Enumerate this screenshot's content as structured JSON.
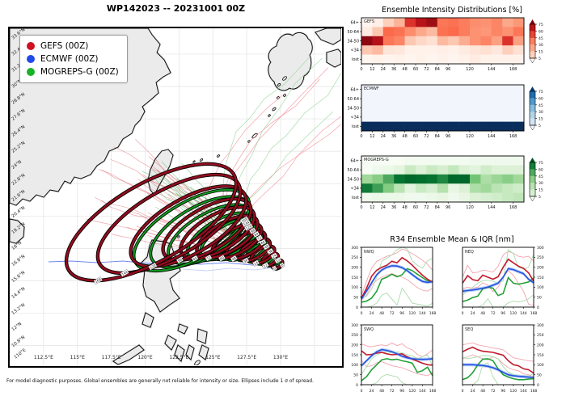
{
  "header": {
    "title": "WP142023 -- 20231001 00Z"
  },
  "map": {
    "legend": [
      {
        "label": "GEFS (00Z)",
        "color": "#cf1022"
      },
      {
        "label": "ECMWF (00Z)",
        "color": "#1f49e8"
      },
      {
        "label": "MOGREPS-G (00Z)",
        "color": "#17b326"
      }
    ],
    "x_ticks": [
      "112.5°E",
      "115°E",
      "117.5°E",
      "120°E",
      "122.5°E",
      "125°E",
      "127.5°E",
      "130°E"
    ],
    "corner_label": "110°E",
    "y_ticks": [
      "33.6°N",
      "32.4°N",
      "31.2°N",
      "30°N",
      "28.8°N",
      "27.6°N",
      "26.4°N",
      "25.2°N",
      "24°N",
      "22.8°N",
      "21.6°N",
      "20.4°N",
      "19.2°N",
      "18°N",
      "16.8°N",
      "15.6°N",
      "14.4°N",
      "13.2°N",
      "12°N",
      "10.8°N",
      "9.6°N"
    ]
  },
  "footnote": "For model diagnostic purposes. Global ensembles are generally not reliable for intensity or size. Ellipses include 1 σ of spread.",
  "chart_data": {
    "intensity_distributions": {
      "type": "heatmap",
      "title": "Ensemble Intensity Distributions [%]",
      "row_labels": [
        "64+",
        "50-64",
        "34-50",
        "<34",
        "lost"
      ],
      "x_ticks": [
        0,
        12,
        24,
        36,
        48,
        60,
        72,
        84,
        96,
        120,
        144,
        168
      ],
      "hours": [
        0,
        12,
        24,
        36,
        48,
        60,
        72,
        84,
        96,
        108,
        120,
        132,
        144,
        156,
        168
      ],
      "colorbar_ticks": [
        75,
        60,
        45,
        30,
        15,
        5
      ],
      "panels": [
        {
          "model": "GEFS",
          "colormap": "reds",
          "grid": [
            [
              0,
              2,
              10,
              18,
              55,
              68,
              78,
              40,
              42,
              38,
              32,
              30,
              35,
              22,
              28
            ],
            [
              3,
              12,
              45,
              42,
              32,
              22,
              15,
              42,
              45,
              38,
              30,
              28,
              35,
              30,
              40
            ],
            [
              85,
              70,
              40,
              35,
              12,
              8,
              6,
              15,
              12,
              20,
              30,
              35,
              25,
              55,
              25
            ],
            [
              12,
              15,
              5,
              4,
              1,
              1,
              1,
              2,
              1,
              3,
              5,
              6,
              4,
              10,
              6
            ],
            [
              0,
              1,
              0,
              1,
              0,
              1,
              0,
              1,
              0,
              1,
              3,
              1,
              1,
              1,
              1
            ]
          ]
        },
        {
          "model": "ECMWF",
          "colormap": "blues",
          "grid": [
            [
              0,
              0,
              0,
              0,
              0,
              0,
              0,
              0,
              0,
              0,
              0,
              0,
              0,
              0,
              0
            ],
            [
              0,
              0,
              0,
              0,
              0,
              0,
              0,
              0,
              0,
              0,
              0,
              0,
              0,
              0,
              0
            ],
            [
              0,
              0,
              0,
              0,
              0,
              0,
              0,
              0,
              0,
              0,
              0,
              0,
              0,
              0,
              0
            ],
            [
              0,
              0,
              0,
              0,
              0,
              0,
              0,
              0,
              0,
              0,
              0,
              0,
              0,
              0,
              0
            ],
            [
              100,
              100,
              100,
              100,
              100,
              100,
              100,
              100,
              100,
              100,
              100,
              100,
              100,
              100,
              100
            ]
          ]
        },
        {
          "model": "MOGREPS-G",
          "colormap": "greens",
          "grid": [
            [
              0,
              0,
              0,
              0,
              1,
              1,
              1,
              1,
              1,
              1,
              2,
              2,
              2,
              2,
              2
            ],
            [
              0,
              2,
              3,
              5,
              14,
              8,
              14,
              10,
              16,
              8,
              6,
              12,
              8,
              8,
              8
            ],
            [
              30,
              38,
              52,
              72,
              78,
              75,
              72,
              62,
              78,
              78,
              45,
              25,
              32,
              38,
              30
            ],
            [
              68,
              55,
              40,
              20,
              6,
              14,
              10,
              22,
              4,
              8,
              25,
              30,
              20,
              15,
              12
            ],
            [
              2,
              3,
              3,
              3,
              2,
              2,
              3,
              4,
              2,
              4,
              8,
              10,
              12,
              15,
              18
            ]
          ]
        }
      ]
    },
    "r34": {
      "type": "line",
      "title": "R34 Ensemble Mean & IQR [nm]",
      "x": [
        0,
        12,
        24,
        36,
        48,
        60,
        72,
        84,
        96,
        108,
        120,
        132,
        144,
        156,
        168
      ],
      "x_ticks": [
        0,
        24,
        48,
        72,
        96,
        120,
        144,
        168
      ],
      "ylim": [
        0,
        300
      ],
      "y_ticks": [
        0,
        50,
        100,
        150,
        200,
        250,
        300
      ],
      "colors": {
        "gefs": "#c21a2c",
        "gefs_band": "#f2a4ae",
        "ecmwf": "#2553e0",
        "ecmwf_band": "#9db8f7",
        "mogreps": "#22a137",
        "mogreps_band": "#a8dcaa"
      },
      "quadrants": [
        {
          "label": "NWQ",
          "y_axis_side": "left",
          "gefs_mean": [
            45,
            95,
            155,
            185,
            200,
            210,
            230,
            222,
            248,
            232,
            210,
            185,
            160,
            140,
            125
          ],
          "gefs_low": [
            35,
            60,
            110,
            135,
            150,
            160,
            168,
            158,
            150,
            138,
            118,
            98,
            85,
            80,
            95
          ],
          "gefs_high": [
            60,
            130,
            195,
            230,
            242,
            255,
            262,
            272,
            292,
            283,
            268,
            253,
            235,
            215,
            185
          ],
          "ecmwf_mean": [
            40,
            80,
            122,
            162,
            186,
            200,
            207,
            206,
            198,
            183,
            163,
            144,
            129,
            124,
            128
          ],
          "mogreps_mean": [
            25,
            30,
            45,
            80,
            140,
            150,
            165,
            152,
            162,
            193,
            183,
            165,
            148,
            132,
            128
          ],
          "mogreps_low": [
            0,
            0,
            5,
            20,
            60,
            70,
            40,
            10,
            95,
            60,
            20,
            15,
            10,
            5,
            20
          ],
          "mogreps_high": [
            40,
            55,
            90,
            150,
            230,
            245,
            262,
            288,
            300,
            292,
            232,
            210,
            195,
            232,
            245
          ]
        },
        {
          "label": "NEQ",
          "y_axis_side": "right",
          "gefs_mean": [
            120,
            158,
            138,
            132,
            160,
            150,
            140,
            152,
            200,
            240,
            222,
            205,
            195,
            172,
            130
          ],
          "gefs_low": [
            92,
            100,
            95,
            100,
            122,
            110,
            78,
            100,
            150,
            182,
            160,
            120,
            80,
            15,
            8
          ],
          "gefs_high": [
            150,
            210,
            172,
            175,
            185,
            182,
            175,
            205,
            262,
            280,
            270,
            255,
            250,
            255,
            230
          ],
          "ecmwf_mean": [
            80,
            83,
            86,
            90,
            95,
            100,
            110,
            120,
            150,
            193,
            188,
            178,
            168,
            140,
            122
          ],
          "mogreps_mean": [
            28,
            35,
            48,
            55,
            92,
            100,
            95,
            58,
            68,
            148,
            120,
            115,
            120,
            126,
            145
          ],
          "mogreps_low": [
            0,
            0,
            0,
            0,
            10,
            42,
            0,
            0,
            0,
            22,
            30,
            25,
            30,
            42,
            62
          ],
          "mogreps_high": [
            62,
            80,
            100,
            120,
            132,
            135,
            130,
            120,
            132,
            288,
            268,
            200,
            190,
            200,
            265
          ]
        },
        {
          "label": "SWQ",
          "y_axis_side": "left",
          "gefs_mean": [
            170,
            150,
            152,
            158,
            162,
            155,
            150,
            152,
            155,
            140,
            128,
            118,
            108,
            100,
            98
          ],
          "gefs_low": [
            122,
            90,
            95,
            110,
            115,
            105,
            95,
            90,
            85,
            75,
            65,
            55,
            50,
            45,
            60
          ],
          "gefs_high": [
            205,
            195,
            190,
            196,
            200,
            195,
            210,
            196,
            205,
            185,
            175,
            152,
            140,
            155,
            175
          ],
          "ecmwf_mean": [
            95,
            120,
            145,
            165,
            176,
            172,
            165,
            155,
            143,
            135,
            130,
            128,
            127,
            128,
            130
          ],
          "mogreps_mean": [
            20,
            40,
            75,
            100,
            125,
            130,
            125,
            128,
            120,
            115,
            108,
            62,
            70,
            88,
            45
          ],
          "mogreps_low": [
            0,
            0,
            0,
            10,
            40,
            52,
            45,
            40,
            10,
            0,
            0,
            0,
            0,
            0,
            0
          ],
          "mogreps_high": [
            52,
            90,
            130,
            150,
            160,
            165,
            160,
            165,
            160,
            150,
            145,
            130,
            140,
            150,
            92
          ]
        },
        {
          "label": "SEQ",
          "y_axis_side": "right",
          "gefs_mean": [
            165,
            178,
            188,
            175,
            168,
            165,
            162,
            155,
            148,
            120,
            100,
            95,
            80,
            75,
            58
          ],
          "gefs_low": [
            130,
            140,
            150,
            140,
            130,
            125,
            140,
            130,
            105,
            85,
            75,
            70,
            55,
            50,
            40
          ],
          "gefs_high": [
            200,
            205,
            210,
            200,
            195,
            190,
            185,
            180,
            175,
            155,
            135,
            130,
            125,
            120,
            118
          ],
          "ecmwf_mean": [
            100,
            100,
            100,
            98,
            96,
            92,
            85,
            75,
            62,
            50,
            45,
            42,
            40,
            38,
            35
          ],
          "mogreps_mean": [
            25,
            35,
            60,
            100,
            128,
            130,
            120,
            80,
            50,
            38,
            30,
            25,
            25,
            28,
            30
          ],
          "mogreps_low": [
            0,
            0,
            0,
            20,
            100,
            110,
            40,
            0,
            0,
            0,
            0,
            0,
            0,
            0,
            0
          ],
          "mogreps_high": [
            140,
            130,
            135,
            140,
            146,
            146,
            140,
            130,
            90,
            62,
            52,
            45,
            40,
            45,
            55
          ]
        }
      ]
    },
    "track_ellipses": {
      "note": "spread ellipses on map, [cx,cy,rx,ry] in map px, rotation -30deg",
      "hours": [
        0,
        12,
        24,
        36,
        48,
        60,
        72,
        84,
        96,
        120,
        144,
        168
      ],
      "gefs": [
        [
          331,
          292,
          7,
          4
        ],
        [
          322,
          286,
          11,
          6
        ],
        [
          313,
          280,
          16,
          8
        ],
        [
          303,
          274,
          21,
          10
        ],
        [
          292,
          268,
          27,
          12
        ],
        [
          281,
          263,
          34,
          15
        ],
        [
          269,
          258,
          42,
          18
        ],
        [
          257,
          253,
          51,
          22
        ],
        [
          244,
          249,
          61,
          26
        ],
        [
          221,
          245,
          80,
          34
        ],
        [
          197,
          242,
          99,
          41
        ],
        [
          175,
          240,
          118,
          48
        ]
      ],
      "mogreps": [
        [
          332,
          294,
          6,
          3
        ],
        [
          324,
          288,
          9,
          5
        ],
        [
          316,
          283,
          13,
          7
        ],
        [
          308,
          278,
          17,
          9
        ],
        [
          299,
          273,
          22,
          11
        ],
        [
          290,
          269,
          28,
          13
        ],
        [
          281,
          265,
          34,
          15
        ],
        [
          272,
          261,
          40,
          18
        ],
        [
          262,
          258,
          47,
          21
        ],
        [
          248,
          255,
          58,
          26
        ],
        [
          236,
          252,
          69,
          31
        ],
        [
          225,
          250,
          80,
          35
        ]
      ]
    }
  }
}
